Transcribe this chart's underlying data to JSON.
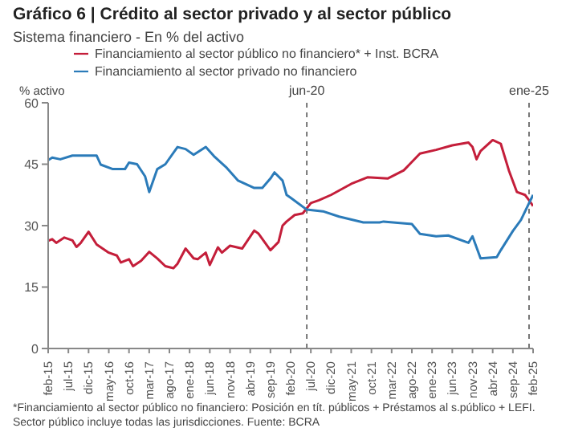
{
  "chart_data": {
    "type": "line",
    "title": "Gráfico 6 | Crédito al sector privado y al sector público",
    "subtitle": "Sistema financiero - En % del activo",
    "ylabel": "% activo",
    "xlim": [
      "2015-02",
      "2025-02"
    ],
    "xticks": [
      {
        "value": "2015-02",
        "label": "feb-15"
      },
      {
        "value": "2015-07",
        "label": "jul-15"
      },
      {
        "value": "2015-12",
        "label": "dic-15"
      },
      {
        "value": "2016-05",
        "label": "may-16"
      },
      {
        "value": "2016-10",
        "label": "oct-16"
      },
      {
        "value": "2017-03",
        "label": "mar-17"
      },
      {
        "value": "2017-08",
        "label": "ago-17"
      },
      {
        "value": "2018-01",
        "label": "ene-18"
      },
      {
        "value": "2018-06",
        "label": "jun-18"
      },
      {
        "value": "2018-11",
        "label": "nov-18"
      },
      {
        "value": "2019-04",
        "label": "abr-19"
      },
      {
        "value": "2019-09",
        "label": "sep-19"
      },
      {
        "value": "2020-02",
        "label": "feb-20"
      },
      {
        "value": "2020-07",
        "label": "jul-20"
      },
      {
        "value": "2020-12",
        "label": "dic-20"
      },
      {
        "value": "2021-05",
        "label": "may-21"
      },
      {
        "value": "2021-10",
        "label": "oct-21"
      },
      {
        "value": "2022-03",
        "label": "mar-22"
      },
      {
        "value": "2022-08",
        "label": "ago-22"
      },
      {
        "value": "2023-01",
        "label": "ene-23"
      },
      {
        "value": "2023-06",
        "label": "jun-23"
      },
      {
        "value": "2023-11",
        "label": "nov-23"
      },
      {
        "value": "2024-04",
        "label": "abr-24"
      },
      {
        "value": "2024-09",
        "label": "sep-24"
      },
      {
        "value": "2025-02",
        "label": "feb-25"
      }
    ],
    "ylim": [
      0,
      60
    ],
    "yticks": [
      0,
      15,
      30,
      45,
      60
    ],
    "legend": "top left",
    "marker": "none",
    "line_style": "solid",
    "series": [
      {
        "name": "Financiamiento al sector público no financiero* + Inst. BCRA",
        "color": "#c41e3a",
        "x": [
          "2015-02",
          "2015-03",
          "2015-04",
          "2015-06",
          "2015-08",
          "2015-09",
          "2015-10",
          "2015-12",
          "2016-02",
          "2016-05",
          "2016-07",
          "2016-08",
          "2016-10",
          "2016-11",
          "2017-01",
          "2017-03",
          "2017-05",
          "2017-07",
          "2017-09",
          "2017-10",
          "2017-12",
          "2018-02",
          "2018-03",
          "2018-05",
          "2018-06",
          "2018-08",
          "2018-09",
          "2018-11",
          "2019-02",
          "2019-05",
          "2019-06",
          "2019-09",
          "2019-11",
          "2019-12",
          "2020-01",
          "2020-03",
          "2020-05",
          "2020-07",
          "2020-09",
          "2020-12",
          "2021-05",
          "2021-09",
          "2022-02",
          "2022-06",
          "2022-10",
          "2023-02",
          "2023-06",
          "2023-10",
          "2023-11",
          "2023-12",
          "2024-01",
          "2024-04",
          "2024-06",
          "2024-08",
          "2024-10",
          "2024-12",
          "2025-01",
          "2025-02"
        ],
        "values": [
          26.3,
          26.7,
          25.8,
          27.1,
          26.4,
          24.8,
          25.7,
          28.5,
          25.4,
          23.4,
          22.7,
          21,
          21.8,
          20.1,
          21.4,
          23.6,
          22,
          20.1,
          19.6,
          20.7,
          24.4,
          22,
          21.8,
          23.4,
          20.4,
          24.7,
          23.4,
          25.1,
          24.4,
          28.8,
          28.1,
          24,
          26,
          30,
          31,
          32.6,
          33,
          35.5,
          36.2,
          37.5,
          40.2,
          41.8,
          41.5,
          43.5,
          47.6,
          48.5,
          49.6,
          50.3,
          49.2,
          46.2,
          48.2,
          50.9,
          50,
          43.5,
          38.2,
          37.5,
          36.2,
          34.8
        ]
      },
      {
        "name": "Financiamiento al sector privado no financiero",
        "color": "#2b7bb9",
        "x": [
          "2015-02",
          "2015-03",
          "2015-05",
          "2015-08",
          "2016-02",
          "2016-03",
          "2016-06",
          "2016-09",
          "2016-10",
          "2016-12",
          "2017-02",
          "2017-03",
          "2017-05",
          "2017-07",
          "2017-10",
          "2017-12",
          "2018-02",
          "2018-05",
          "2018-07",
          "2018-10",
          "2019-01",
          "2019-05",
          "2019-07",
          "2019-09",
          "2019-10",
          "2019-12",
          "2020-01",
          "2020-02",
          "2020-06",
          "2020-10",
          "2021-02",
          "2021-08",
          "2021-12",
          "2022-01",
          "2022-08",
          "2022-10",
          "2023-02",
          "2023-05",
          "2023-10",
          "2023-11",
          "2024-01",
          "2024-05",
          "2024-06",
          "2024-09",
          "2024-11",
          "2025-01",
          "2025-02"
        ],
        "values": [
          46,
          46.6,
          46.2,
          47.1,
          47.1,
          44.9,
          43.8,
          43.8,
          45.4,
          45,
          42,
          38.2,
          43.8,
          45,
          49.2,
          48.7,
          47.3,
          49.2,
          47,
          44.3,
          41,
          39.2,
          39.2,
          41.5,
          43,
          41,
          37.5,
          36.8,
          33.9,
          33.5,
          32.2,
          30.8,
          30.8,
          31,
          30.4,
          28,
          27.4,
          27.6,
          25.8,
          27.4,
          22,
          22.3,
          24,
          28.7,
          31.4,
          35.5,
          37.5
        ]
      }
    ],
    "ref_lines": [
      {
        "axis": "x",
        "value": "2020-06",
        "label": "jun-20",
        "color": "#555555",
        "line_style": "dashed"
      },
      {
        "axis": "x",
        "value": "2025-01",
        "label": "ene-25",
        "color": "#555555",
        "line_style": "dashed"
      }
    ],
    "annotations": [
      "*Financiamiento al sector público no financiero: Posición en tít. públicos + Préstamos al s.público + LEFI. Sector público incluye todas las jurisdicciones. Fuente: BCRA"
    ]
  }
}
